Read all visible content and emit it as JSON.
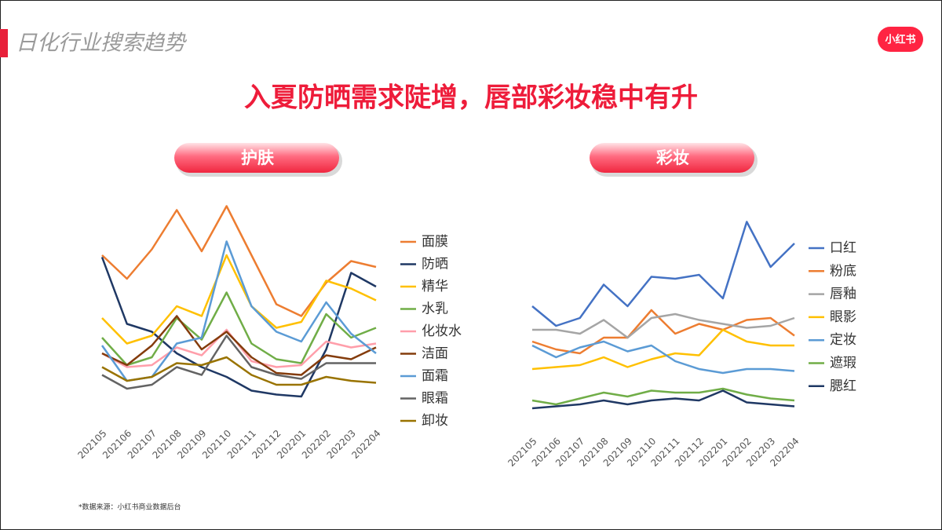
{
  "header": {
    "title": "日化行业搜索趋势",
    "logo": "小红书"
  },
  "headline": "入夏防晒需求陡增，唇部彩妆稳中有升",
  "chart_data": [
    {
      "type": "line",
      "title": "护肤",
      "categories": [
        "202105",
        "202106",
        "202107",
        "202108",
        "202109",
        "202110",
        "202111",
        "202112",
        "202201",
        "202202",
        "202203",
        "202204"
      ],
      "ylim": [
        0,
        110
      ],
      "grid": false,
      "legend": "right",
      "series": [
        {
          "name": "面膜",
          "color": "#ED7D31",
          "values": [
            82,
            70,
            85,
            105,
            84,
            107,
            82,
            57,
            51,
            68,
            79,
            76
          ]
        },
        {
          "name": "防晒",
          "color": "#1F3864",
          "values": [
            81,
            47,
            43,
            32,
            25,
            20,
            13,
            11,
            10,
            34,
            73,
            66
          ]
        },
        {
          "name": "精华",
          "color": "#FFC000",
          "values": [
            50,
            37,
            41,
            56,
            51,
            82,
            56,
            45,
            48,
            69,
            65,
            59
          ]
        },
        {
          "name": "水乳",
          "color": "#70AD47",
          "values": [
            40,
            26,
            30,
            50,
            39,
            63,
            37,
            29,
            27,
            52,
            40,
            45
          ]
        },
        {
          "name": "化妆水",
          "color": "#FF9EAA",
          "values": [
            32,
            25,
            26,
            35,
            31,
            44,
            28,
            25,
            26,
            38,
            35,
            37
          ]
        },
        {
          "name": "洁面",
          "color": "#843C0C",
          "values": [
            32,
            26,
            36,
            51,
            34,
            43,
            30,
            22,
            21,
            31,
            29,
            35
          ]
        },
        {
          "name": "面霜",
          "color": "#5B9BD5",
          "values": [
            36,
            18,
            20,
            37,
            40,
            89,
            56,
            43,
            38,
            58,
            42,
            32
          ]
        },
        {
          "name": "眼霜",
          "color": "#636363",
          "values": [
            21,
            14,
            16,
            25,
            21,
            41,
            25,
            21,
            19,
            27,
            27,
            27
          ]
        },
        {
          "name": "卸妆",
          "color": "#997300",
          "values": [
            25,
            18,
            20,
            27,
            26,
            30,
            21,
            16,
            16,
            20,
            18,
            17
          ]
        }
      ]
    },
    {
      "type": "line",
      "title": "彩妆",
      "categories": [
        "202105",
        "202106",
        "202107",
        "202108",
        "202109",
        "202110",
        "202111",
        "202112",
        "202201",
        "202202",
        "202203",
        "202204"
      ],
      "ylim": [
        0,
        110
      ],
      "grid": false,
      "legend": "right",
      "series": [
        {
          "name": "口红",
          "color": "#4472C4",
          "values": [
            60,
            50,
            54,
            71,
            60,
            75,
            74,
            76,
            64,
            103,
            80,
            92
          ]
        },
        {
          "name": "粉底",
          "color": "#ED7D31",
          "values": [
            42,
            38,
            36,
            44,
            44,
            58,
            46,
            51,
            48,
            53,
            54,
            45
          ]
        },
        {
          "name": "唇釉",
          "color": "#A5A5A5",
          "values": [
            48,
            48,
            46,
            53,
            44,
            54,
            56,
            53,
            51,
            49,
            50,
            54
          ]
        },
        {
          "name": "眼影",
          "color": "#FFC000",
          "values": [
            28,
            29,
            30,
            34,
            29,
            33,
            36,
            35,
            48,
            42,
            40,
            40
          ]
        },
        {
          "name": "定妆",
          "color": "#5B9BD5",
          "values": [
            40,
            34,
            39,
            42,
            37,
            40,
            32,
            28,
            26,
            28,
            28,
            27
          ]
        },
        {
          "name": "遮瑕",
          "color": "#70AD47",
          "values": [
            12,
            10,
            13,
            16,
            14,
            17,
            16,
            16,
            18,
            15,
            13,
            12
          ]
        },
        {
          "name": "腮红",
          "color": "#1F3864",
          "values": [
            8,
            9,
            10,
            12,
            10,
            12,
            13,
            12,
            17,
            11,
            10,
            9
          ]
        }
      ]
    }
  ],
  "footnote": "*数据来源：小红书商业数据后台"
}
